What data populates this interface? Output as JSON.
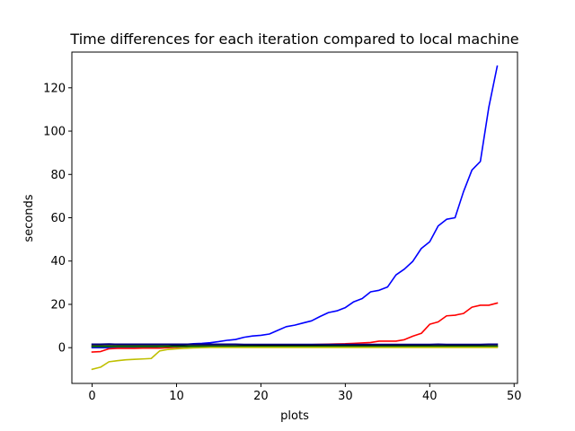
{
  "chart_data": {
    "type": "line",
    "title": "Time differences for each iteration compared to local machine",
    "xlabel": "plots",
    "ylabel": "seconds",
    "xlim": [
      -2.4,
      50.4
    ],
    "ylim": [
      -16.5,
      136.5
    ],
    "xticks": [
      0,
      10,
      20,
      30,
      40,
      50
    ],
    "yticks": [
      0,
      20,
      40,
      60,
      80,
      100,
      120
    ],
    "grid": false,
    "x": [
      0,
      1,
      2,
      3,
      4,
      5,
      6,
      7,
      8,
      9,
      10,
      11,
      12,
      13,
      14,
      15,
      16,
      17,
      18,
      19,
      20,
      21,
      22,
      23,
      24,
      25,
      26,
      27,
      28,
      29,
      30,
      31,
      32,
      33,
      34,
      35,
      36,
      37,
      38,
      39,
      40,
      41,
      42,
      43,
      44,
      45,
      46,
      47,
      48
    ],
    "series": [
      {
        "color": "#0000ff",
        "values": [
          0.0,
          0.0,
          0.0,
          0.0,
          0.0,
          0.0,
          0.0,
          0.2,
          0.5,
          0.8,
          1.2,
          1.5,
          1.8,
          2.0,
          2.3,
          2.8,
          3.4,
          3.8,
          4.8,
          5.4,
          5.7,
          6.3,
          8.0,
          9.7,
          10.4,
          11.4,
          12.4,
          14.4,
          16.2,
          17.0,
          18.5,
          21.2,
          22.7,
          25.8,
          26.5,
          28.0,
          33.6,
          36.3,
          39.9,
          45.8,
          48.9,
          56.2,
          59.3,
          60.0,
          72.0,
          82.0,
          86.0,
          111.0,
          130.0
        ]
      },
      {
        "color": "#ff0000",
        "values": [
          -2.0,
          -1.8,
          -0.5,
          -0.3,
          -0.3,
          -0.3,
          -0.2,
          -0.2,
          -0.2,
          0.0,
          0.2,
          0.4,
          0.6,
          0.7,
          0.8,
          0.8,
          0.8,
          0.8,
          0.9,
          0.9,
          1.0,
          1.0,
          1.0,
          1.1,
          1.2,
          1.3,
          1.4,
          1.5,
          1.6,
          1.7,
          1.8,
          2.0,
          2.2,
          2.4,
          3.0,
          3.0,
          3.0,
          3.7,
          5.3,
          6.6,
          10.8,
          11.9,
          14.7,
          15.0,
          15.8,
          18.7,
          19.6,
          19.6,
          20.6
        ]
      },
      {
        "color": "#00007f",
        "values": [
          1.6,
          1.6,
          1.7,
          1.6,
          1.6,
          1.6,
          1.6,
          1.6,
          1.6,
          1.6,
          1.6,
          1.6,
          1.6,
          1.6,
          1.6,
          1.6,
          1.6,
          1.6,
          1.5,
          1.5,
          1.5,
          1.5,
          1.5,
          1.5,
          1.5,
          1.5,
          1.5,
          1.5,
          1.5,
          1.5,
          1.5,
          1.5,
          1.5,
          1.5,
          1.5,
          1.5,
          1.5,
          1.5,
          1.5,
          1.5,
          1.5,
          1.6,
          1.5,
          1.5,
          1.5,
          1.5,
          1.5,
          1.6,
          1.6
        ]
      },
      {
        "color": "#000000",
        "values": [
          0.9,
          0.9,
          0.9,
          0.9,
          0.9,
          0.9,
          0.9,
          0.9,
          0.9,
          0.9,
          0.9,
          0.9,
          0.9,
          0.9,
          0.9,
          0.9,
          0.9,
          0.9,
          0.9,
          0.9,
          0.9,
          0.9,
          0.9,
          0.9,
          0.9,
          0.9,
          0.9,
          0.9,
          0.9,
          0.9,
          0.9,
          0.9,
          0.9,
          0.9,
          0.9,
          0.9,
          0.9,
          0.9,
          0.9,
          0.9,
          0.9,
          0.9,
          0.9,
          0.9,
          0.9,
          0.9,
          0.9,
          0.9,
          0.9
        ]
      },
      {
        "color": "#007f00",
        "values": [
          0.5,
          0.5,
          0.5,
          0.5,
          0.5,
          0.5,
          0.5,
          0.5,
          0.5,
          0.5,
          0.5,
          0.5,
          0.5,
          0.5,
          0.5,
          0.5,
          0.5,
          0.5,
          0.5,
          0.5,
          0.5,
          0.5,
          0.5,
          0.5,
          0.5,
          0.5,
          0.5,
          0.5,
          0.5,
          0.5,
          0.5,
          0.5,
          0.5,
          0.5,
          0.5,
          0.5,
          0.5,
          0.5,
          0.5,
          0.5,
          0.5,
          0.5,
          0.5,
          0.5,
          0.5,
          0.5,
          0.5,
          0.5,
          0.5
        ]
      },
      {
        "color": "#bfbf00",
        "values": [
          -10.0,
          -9.0,
          -6.5,
          -6.0,
          -5.6,
          -5.4,
          -5.2,
          -5.0,
          -1.5,
          -0.8,
          -0.5,
          -0.3,
          -0.1,
          0.0,
          0.1,
          0.1,
          0.1,
          0.1,
          0.1,
          0.1,
          0.1,
          0.1,
          0.1,
          0.1,
          0.1,
          0.1,
          0.1,
          0.1,
          0.1,
          0.1,
          0.1,
          0.1,
          0.1,
          0.1,
          0.1,
          0.1,
          0.1,
          0.1,
          0.1,
          0.1,
          0.1,
          0.1,
          0.1,
          0.1,
          0.1,
          0.1,
          0.1,
          0.1,
          0.1
        ]
      }
    ]
  }
}
